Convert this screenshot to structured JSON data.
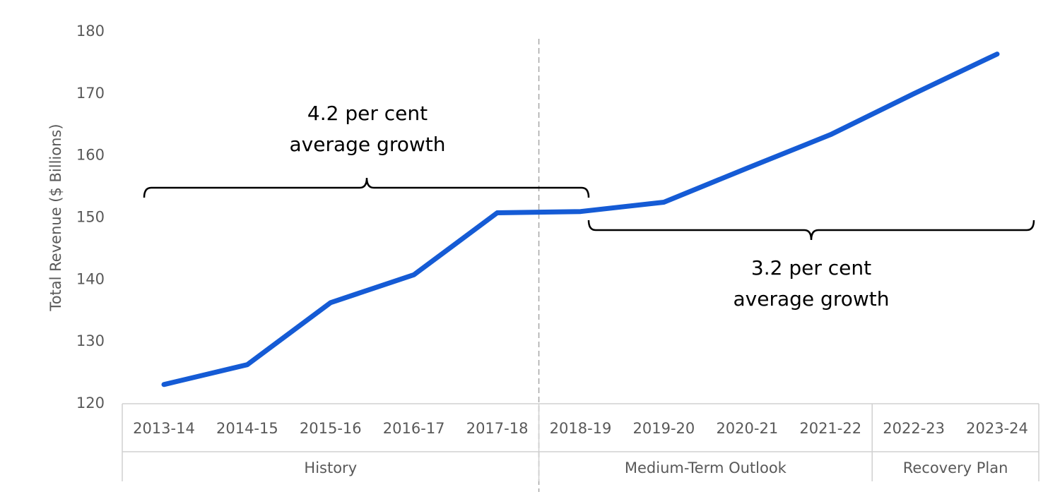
{
  "chart_data": {
    "type": "line",
    "y_label": "Total Revenue ($ Billions)",
    "categories": [
      "2013-14",
      "2014-15",
      "2015-16",
      "2016-17",
      "2017-18",
      "2018-19",
      "2019-20",
      "2020-21",
      "2021-22",
      "2022-23",
      "2023-24"
    ],
    "groups": [
      {
        "name": "History",
        "count": 5
      },
      {
        "name": "Medium-Term Outlook",
        "count": 4
      },
      {
        "name": "Recovery Plan",
        "count": 2
      }
    ],
    "series": [
      {
        "name": "Total Revenue",
        "color": "#155bd5",
        "values": [
          123.1,
          126.3,
          136.3,
          140.8,
          150.8,
          151.0,
          152.5,
          158.0,
          163.4,
          170.0,
          176.4
        ]
      }
    ],
    "ylim": [
      120,
      180
    ],
    "yticks": [
      120,
      130,
      140,
      150,
      160,
      170,
      180
    ],
    "grid": false,
    "annotations": [
      {
        "lines": [
          "4.2 per cent",
          "average growth"
        ]
      },
      {
        "lines": [
          "3.2 per cent",
          "average growth"
        ]
      }
    ]
  }
}
